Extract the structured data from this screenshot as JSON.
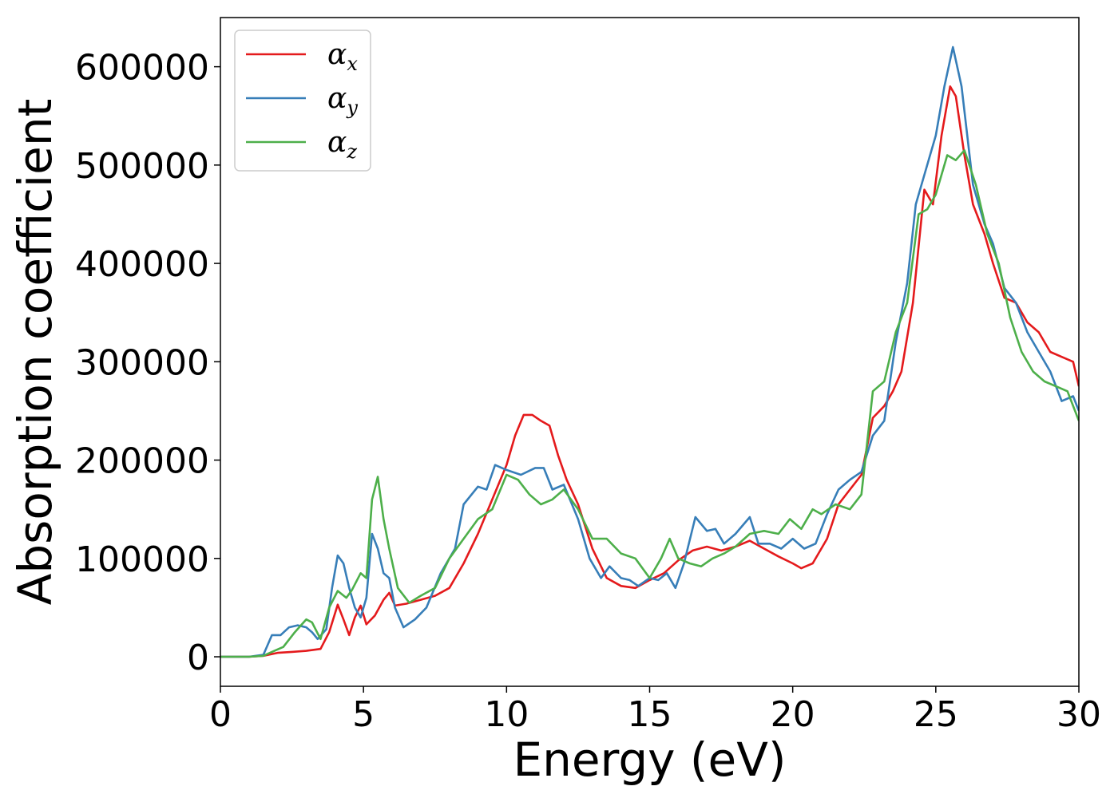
{
  "chart_data": {
    "type": "line",
    "title": "",
    "xlabel": "Energy (eV)",
    "ylabel": "Absorption coefficient",
    "xlim": [
      0,
      30
    ],
    "ylim": [
      -30000,
      650000
    ],
    "x_ticks": [
      0,
      5,
      10,
      15,
      20,
      25,
      30
    ],
    "y_ticks": [
      0,
      100000,
      200000,
      300000,
      400000,
      500000,
      600000
    ],
    "grid": false,
    "legend_position": "top-left",
    "series": [
      {
        "name": "α",
        "subscript": "x",
        "color": "#e41a1c",
        "points": [
          [
            0,
            0
          ],
          [
            1,
            0
          ],
          [
            1.5,
            1000
          ],
          [
            2,
            4000
          ],
          [
            2.5,
            5000
          ],
          [
            3,
            6000
          ],
          [
            3.5,
            8000
          ],
          [
            3.8,
            25000
          ],
          [
            4.1,
            53000
          ],
          [
            4.3,
            38000
          ],
          [
            4.5,
            22000
          ],
          [
            4.7,
            40000
          ],
          [
            4.9,
            52000
          ],
          [
            5.1,
            33000
          ],
          [
            5.4,
            42000
          ],
          [
            5.7,
            58000
          ],
          [
            5.9,
            65000
          ],
          [
            6.1,
            52000
          ],
          [
            6.5,
            54000
          ],
          [
            7,
            58000
          ],
          [
            7.5,
            62000
          ],
          [
            8,
            70000
          ],
          [
            8.5,
            95000
          ],
          [
            9,
            125000
          ],
          [
            9.5,
            160000
          ],
          [
            10,
            195000
          ],
          [
            10.3,
            225000
          ],
          [
            10.6,
            246000
          ],
          [
            10.9,
            246000
          ],
          [
            11.2,
            240000
          ],
          [
            11.5,
            235000
          ],
          [
            11.8,
            205000
          ],
          [
            12.1,
            180000
          ],
          [
            12.5,
            155000
          ],
          [
            13,
            110000
          ],
          [
            13.5,
            80000
          ],
          [
            14,
            72000
          ],
          [
            14.5,
            70000
          ],
          [
            15,
            78000
          ],
          [
            15.5,
            85000
          ],
          [
            16,
            98000
          ],
          [
            16.5,
            108000
          ],
          [
            17,
            112000
          ],
          [
            17.5,
            108000
          ],
          [
            18,
            112000
          ],
          [
            18.5,
            118000
          ],
          [
            19,
            110000
          ],
          [
            19.5,
            102000
          ],
          [
            20,
            95000
          ],
          [
            20.3,
            90000
          ],
          [
            20.7,
            95000
          ],
          [
            21.2,
            120000
          ],
          [
            21.6,
            155000
          ],
          [
            22,
            170000
          ],
          [
            22.4,
            185000
          ],
          [
            22.8,
            243000
          ],
          [
            23.2,
            255000
          ],
          [
            23.5,
            270000
          ],
          [
            23.8,
            290000
          ],
          [
            24.2,
            360000
          ],
          [
            24.6,
            475000
          ],
          [
            24.9,
            460000
          ],
          [
            25.2,
            530000
          ],
          [
            25.5,
            580000
          ],
          [
            25.7,
            570000
          ],
          [
            26,
            510000
          ],
          [
            26.3,
            460000
          ],
          [
            26.7,
            430000
          ],
          [
            27,
            400000
          ],
          [
            27.4,
            365000
          ],
          [
            27.8,
            360000
          ],
          [
            28.2,
            340000
          ],
          [
            28.6,
            330000
          ],
          [
            29,
            310000
          ],
          [
            29.4,
            305000
          ],
          [
            29.8,
            300000
          ],
          [
            30,
            275000
          ]
        ]
      },
      {
        "name": "α",
        "subscript": "y",
        "color": "#377eb8",
        "points": [
          [
            0,
            0
          ],
          [
            1,
            0
          ],
          [
            1.5,
            2000
          ],
          [
            1.8,
            22000
          ],
          [
            2.1,
            22000
          ],
          [
            2.4,
            30000
          ],
          [
            2.7,
            32000
          ],
          [
            3,
            30000
          ],
          [
            3.2,
            25000
          ],
          [
            3.4,
            18000
          ],
          [
            3.7,
            28000
          ],
          [
            3.9,
            70000
          ],
          [
            4.1,
            103000
          ],
          [
            4.3,
            95000
          ],
          [
            4.5,
            70000
          ],
          [
            4.7,
            50000
          ],
          [
            4.9,
            40000
          ],
          [
            5.1,
            60000
          ],
          [
            5.3,
            125000
          ],
          [
            5.5,
            110000
          ],
          [
            5.7,
            85000
          ],
          [
            5.9,
            80000
          ],
          [
            6.1,
            50000
          ],
          [
            6.4,
            30000
          ],
          [
            6.8,
            38000
          ],
          [
            7.2,
            50000
          ],
          [
            7.7,
            85000
          ],
          [
            8.2,
            110000
          ],
          [
            8.5,
            155000
          ],
          [
            9,
            173000
          ],
          [
            9.3,
            170000
          ],
          [
            9.6,
            195000
          ],
          [
            10,
            190000
          ],
          [
            10.5,
            185000
          ],
          [
            11,
            192000
          ],
          [
            11.3,
            192000
          ],
          [
            11.6,
            170000
          ],
          [
            12,
            175000
          ],
          [
            12.5,
            140000
          ],
          [
            12.9,
            100000
          ],
          [
            13.3,
            80000
          ],
          [
            13.6,
            92000
          ],
          [
            14,
            80000
          ],
          [
            14.3,
            78000
          ],
          [
            14.6,
            72000
          ],
          [
            15,
            80000
          ],
          [
            15.3,
            78000
          ],
          [
            15.6,
            85000
          ],
          [
            15.9,
            70000
          ],
          [
            16.2,
            95000
          ],
          [
            16.6,
            142000
          ],
          [
            17,
            128000
          ],
          [
            17.3,
            130000
          ],
          [
            17.6,
            115000
          ],
          [
            18,
            125000
          ],
          [
            18.5,
            142000
          ],
          [
            18.8,
            115000
          ],
          [
            19.2,
            115000
          ],
          [
            19.6,
            110000
          ],
          [
            20,
            120000
          ],
          [
            20.4,
            110000
          ],
          [
            20.8,
            115000
          ],
          [
            21.2,
            145000
          ],
          [
            21.6,
            170000
          ],
          [
            22,
            180000
          ],
          [
            22.4,
            188000
          ],
          [
            22.8,
            225000
          ],
          [
            23.2,
            240000
          ],
          [
            23.6,
            320000
          ],
          [
            24,
            380000
          ],
          [
            24.3,
            460000
          ],
          [
            24.6,
            490000
          ],
          [
            25,
            530000
          ],
          [
            25.3,
            580000
          ],
          [
            25.6,
            620000
          ],
          [
            25.9,
            580000
          ],
          [
            26.3,
            480000
          ],
          [
            26.7,
            440000
          ],
          [
            27,
            420000
          ],
          [
            27.4,
            375000
          ],
          [
            27.8,
            360000
          ],
          [
            28.2,
            330000
          ],
          [
            28.6,
            310000
          ],
          [
            29,
            290000
          ],
          [
            29.4,
            260000
          ],
          [
            29.8,
            265000
          ],
          [
            30,
            250000
          ]
        ]
      },
      {
        "name": "α",
        "subscript": "z",
        "color": "#4daf4a",
        "points": [
          [
            0,
            0
          ],
          [
            1,
            0
          ],
          [
            1.5,
            1000
          ],
          [
            1.8,
            5000
          ],
          [
            2.2,
            10000
          ],
          [
            2.6,
            25000
          ],
          [
            3,
            38000
          ],
          [
            3.2,
            35000
          ],
          [
            3.5,
            18000
          ],
          [
            3.8,
            50000
          ],
          [
            4.1,
            67000
          ],
          [
            4.4,
            60000
          ],
          [
            4.6,
            68000
          ],
          [
            4.9,
            85000
          ],
          [
            5.1,
            80000
          ],
          [
            5.3,
            160000
          ],
          [
            5.5,
            183000
          ],
          [
            5.7,
            140000
          ],
          [
            5.9,
            110000
          ],
          [
            6.2,
            70000
          ],
          [
            6.6,
            55000
          ],
          [
            7,
            62000
          ],
          [
            7.5,
            70000
          ],
          [
            8,
            100000
          ],
          [
            8.5,
            120000
          ],
          [
            9,
            140000
          ],
          [
            9.5,
            150000
          ],
          [
            10,
            185000
          ],
          [
            10.4,
            180000
          ],
          [
            10.8,
            165000
          ],
          [
            11.2,
            155000
          ],
          [
            11.6,
            160000
          ],
          [
            12,
            170000
          ],
          [
            12.5,
            150000
          ],
          [
            13,
            120000
          ],
          [
            13.5,
            120000
          ],
          [
            14,
            105000
          ],
          [
            14.5,
            100000
          ],
          [
            15,
            80000
          ],
          [
            15.4,
            100000
          ],
          [
            15.7,
            120000
          ],
          [
            16,
            100000
          ],
          [
            16.4,
            95000
          ],
          [
            16.8,
            92000
          ],
          [
            17.2,
            100000
          ],
          [
            17.6,
            105000
          ],
          [
            18,
            112000
          ],
          [
            18.5,
            125000
          ],
          [
            19,
            128000
          ],
          [
            19.5,
            125000
          ],
          [
            19.9,
            140000
          ],
          [
            20.3,
            130000
          ],
          [
            20.7,
            150000
          ],
          [
            21,
            145000
          ],
          [
            21.5,
            155000
          ],
          [
            22,
            150000
          ],
          [
            22.4,
            165000
          ],
          [
            22.8,
            270000
          ],
          [
            23.2,
            280000
          ],
          [
            23.6,
            330000
          ],
          [
            24,
            360000
          ],
          [
            24.4,
            450000
          ],
          [
            24.7,
            455000
          ],
          [
            25,
            470000
          ],
          [
            25.4,
            510000
          ],
          [
            25.7,
            505000
          ],
          [
            26,
            515000
          ],
          [
            26.4,
            480000
          ],
          [
            26.8,
            430000
          ],
          [
            27.2,
            400000
          ],
          [
            27.6,
            345000
          ],
          [
            28,
            310000
          ],
          [
            28.4,
            290000
          ],
          [
            28.8,
            280000
          ],
          [
            29.2,
            275000
          ],
          [
            29.6,
            270000
          ],
          [
            30,
            240000
          ]
        ]
      }
    ]
  }
}
